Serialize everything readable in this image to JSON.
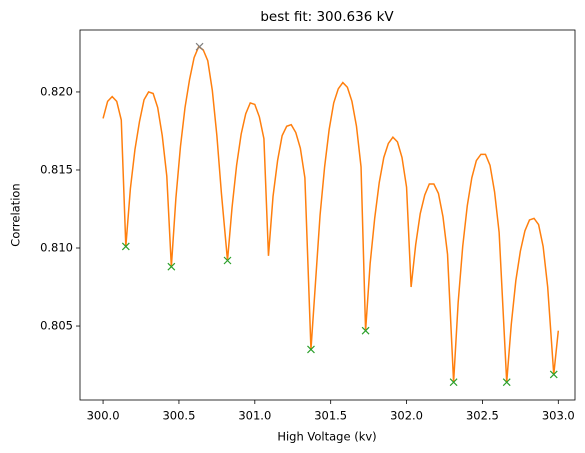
{
  "chart_data": {
    "type": "line",
    "title": "best fit: 300.636 kV",
    "x_label": "High Voltage (kv)",
    "y_label": "Correlation",
    "xlim": [
      299.848,
      303.11
    ],
    "ylim": [
      0.80026,
      0.82397
    ],
    "xticks": [
      {
        "value": 300,
        "label": "300.0"
      },
      300.5,
      {
        "value": 301,
        "label": "301.0"
      },
      301.5,
      {
        "value": 302,
        "label": "302.0"
      },
      302.5,
      {
        "value": 303,
        "label": "303.0"
      }
    ],
    "yticks": [
      0.805,
      {
        "value": 0.81,
        "label": "0.810"
      },
      0.815,
      {
        "value": 0.82,
        "label": "0.820"
      }
    ],
    "series": [
      {
        "type": "line",
        "color": "#ff7f0e",
        "x": [
          300.0,
          300.03,
          300.06,
          300.09,
          300.12,
          300.15,
          300.18,
          300.21,
          300.24,
          300.27,
          300.3,
          300.33,
          300.36,
          300.39,
          300.42,
          300.45,
          300.48,
          300.51,
          300.54,
          300.57,
          300.6,
          300.63,
          300.66,
          300.69,
          300.72,
          300.75,
          300.78,
          300.82,
          300.85,
          300.88,
          300.91,
          300.94,
          300.97,
          301.0,
          301.03,
          301.06,
          301.09,
          301.12,
          301.15,
          301.18,
          301.21,
          301.24,
          301.27,
          301.3,
          301.33,
          301.37,
          301.4,
          301.43,
          301.46,
          301.49,
          301.52,
          301.55,
          301.58,
          301.61,
          301.64,
          301.67,
          301.7,
          301.73,
          301.76,
          301.79,
          301.82,
          301.85,
          301.88,
          301.91,
          301.94,
          301.97,
          302.0,
          302.03,
          302.06,
          302.09,
          302.12,
          302.15,
          302.18,
          302.21,
          302.24,
          302.27,
          302.31,
          302.34,
          302.37,
          302.4,
          302.43,
          302.46,
          302.49,
          302.52,
          302.55,
          302.58,
          302.61,
          302.66,
          302.69,
          302.72,
          302.75,
          302.78,
          302.81,
          302.84,
          302.87,
          302.9,
          302.93,
          302.97,
          303.0
        ],
        "values": [
          0.8183,
          0.8194,
          0.8197,
          0.8194,
          0.8182,
          0.8101,
          0.8138,
          0.8163,
          0.8181,
          0.8195,
          0.82,
          0.8199,
          0.819,
          0.8172,
          0.8146,
          0.8088,
          0.8132,
          0.8165,
          0.819,
          0.8208,
          0.8222,
          0.8229,
          0.8227,
          0.822,
          0.8201,
          0.8172,
          0.8135,
          0.8092,
          0.8126,
          0.8153,
          0.8173,
          0.8186,
          0.8193,
          0.8192,
          0.8184,
          0.817,
          0.8095,
          0.8133,
          0.8156,
          0.8172,
          0.8178,
          0.8179,
          0.8174,
          0.8164,
          0.8145,
          0.8035,
          0.8078,
          0.8121,
          0.8152,
          0.8176,
          0.8193,
          0.8202,
          0.8206,
          0.8203,
          0.8194,
          0.8178,
          0.8152,
          0.8047,
          0.809,
          0.8119,
          0.8142,
          0.8158,
          0.8167,
          0.8171,
          0.8168,
          0.8158,
          0.8139,
          0.8075,
          0.8102,
          0.8122,
          0.8134,
          0.8141,
          0.8141,
          0.8135,
          0.812,
          0.8096,
          0.8014,
          0.8065,
          0.8101,
          0.8127,
          0.8145,
          0.8156,
          0.816,
          0.816,
          0.8153,
          0.8136,
          0.811,
          0.8014,
          0.8051,
          0.8079,
          0.8098,
          0.8111,
          0.8118,
          0.8119,
          0.8115,
          0.8101,
          0.8075,
          0.8019,
          0.8047
        ]
      },
      {
        "type": "scatter",
        "color": "#2ca02c",
        "x": [
          300.15,
          300.45,
          300.82,
          301.37,
          301.73,
          302.31,
          302.66,
          302.97
        ],
        "values": [
          0.8101,
          0.8088,
          0.8092,
          0.8035,
          0.8047,
          0.8014,
          0.8014,
          0.8019
        ]
      },
      {
        "type": "scatter",
        "color": "#7f7f7f",
        "x": [
          300.636
        ],
        "values": [
          0.8229
        ]
      }
    ]
  }
}
